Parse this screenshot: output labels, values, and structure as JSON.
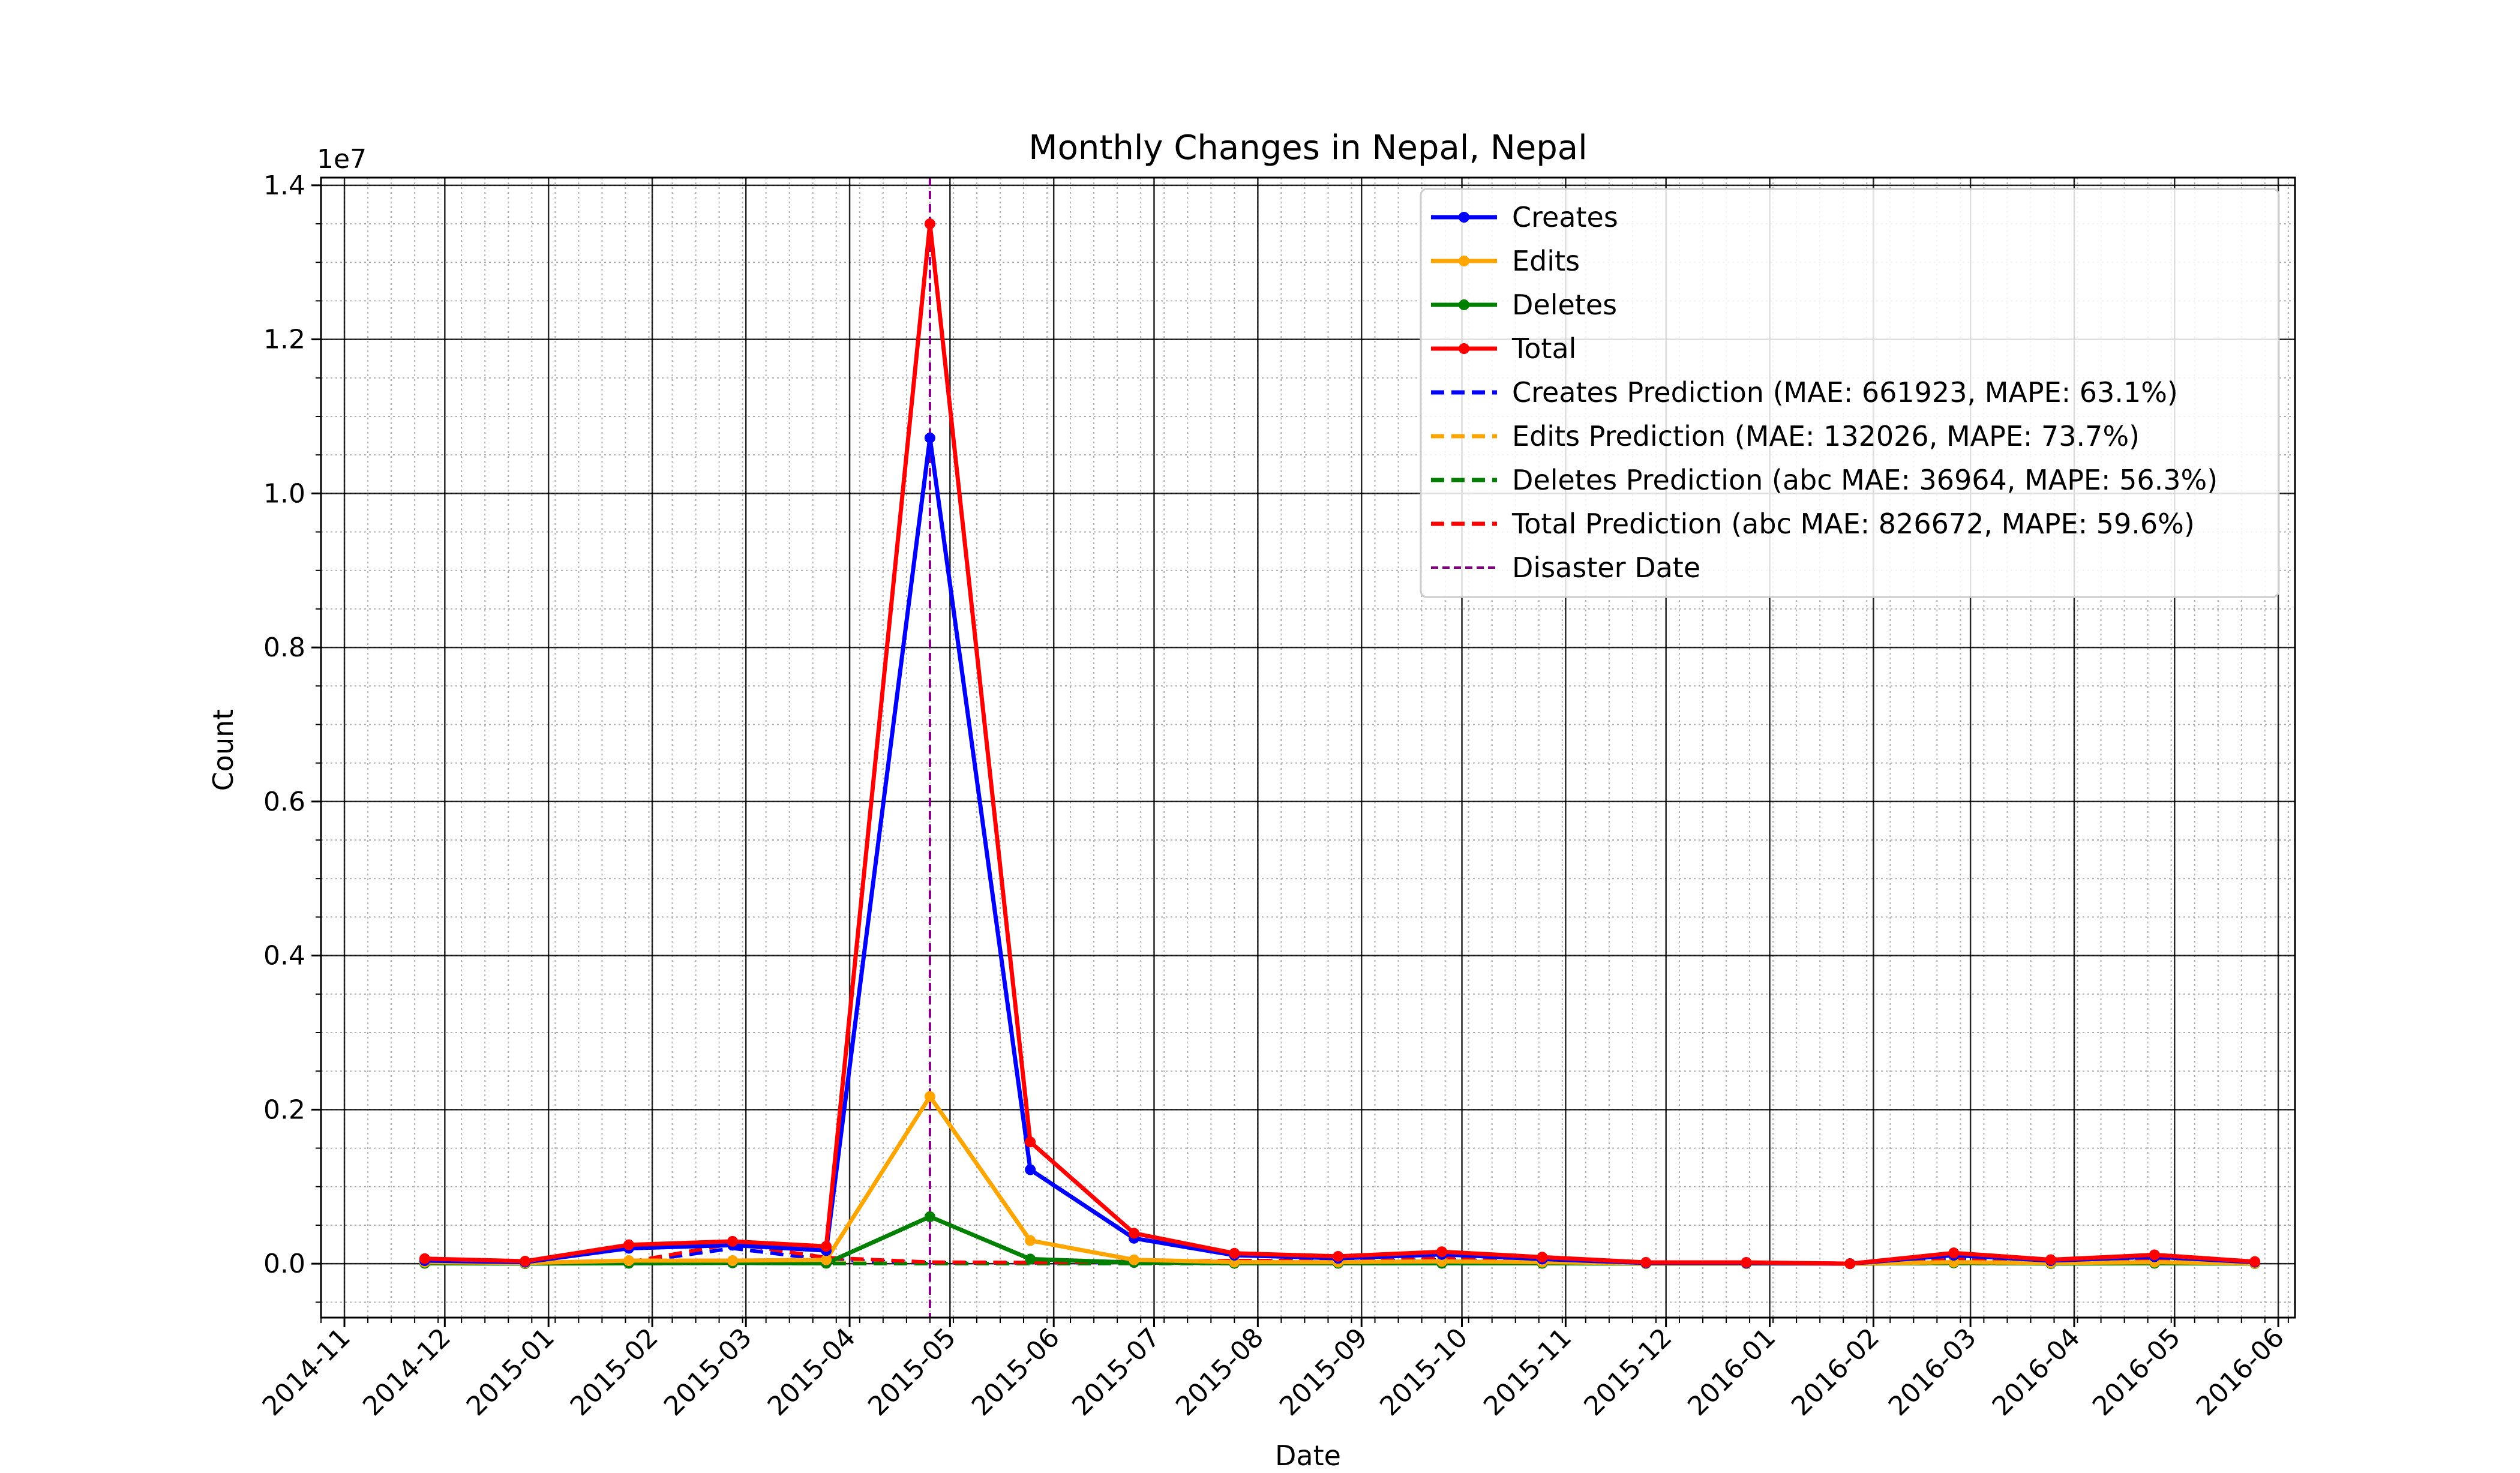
{
  "chart_data": {
    "type": "line",
    "title": "Monthly Changes in Nepal, Nepal",
    "xlabel": "Date",
    "ylabel": "Count",
    "y_scale_label": "1e7",
    "y_scale": 10000000,
    "ylim": [
      -0.07,
      1.41
    ],
    "xlim": [
      "2014-10-25",
      "2016-06-06"
    ],
    "x_ticks": [
      "2014-11",
      "2014-12",
      "2015-01",
      "2015-02",
      "2015-03",
      "2015-04",
      "2015-05",
      "2015-06",
      "2015-07",
      "2015-08",
      "2015-09",
      "2015-10",
      "2015-11",
      "2015-12",
      "2016-01",
      "2016-02",
      "2016-03",
      "2016-04",
      "2016-05",
      "2016-06"
    ],
    "y_ticks": [
      "0.0",
      "0.2",
      "0.4",
      "0.6",
      "0.8",
      "1.0",
      "1.2",
      "1.4"
    ],
    "grid": true,
    "legend_position": "top-right",
    "disaster_date": "2015-04-25",
    "x": [
      "2014-11-25",
      "2014-12-25",
      "2015-01-25",
      "2015-02-25",
      "2015-03-25",
      "2015-04-25",
      "2015-05-25",
      "2015-06-25",
      "2015-07-25",
      "2015-08-25",
      "2015-09-25",
      "2015-10-25",
      "2015-11-25",
      "2015-12-25",
      "2016-01-25",
      "2016-02-25",
      "2016-03-25",
      "2016-04-25",
      "2016-05-25"
    ],
    "series": [
      {
        "name": "Creates",
        "color": "#0000ff",
        "style": "solid",
        "marker": true,
        "values": [
          40000,
          20000,
          200000,
          240000,
          170000,
          10720000,
          1220000,
          330000,
          110000,
          70000,
          120000,
          60000,
          10000,
          10000,
          0,
          110000,
          40000,
          90000,
          20000
        ]
      },
      {
        "name": "Edits",
        "color": "#ffa500",
        "style": "solid",
        "marker": true,
        "values": [
          20000,
          10000,
          40000,
          40000,
          50000,
          2170000,
          300000,
          50000,
          20000,
          20000,
          30000,
          20000,
          5000,
          5000,
          0,
          20000,
          10000,
          20000,
          5000
        ]
      },
      {
        "name": "Deletes",
        "color": "#008000",
        "style": "solid",
        "marker": true,
        "values": [
          5000,
          2000,
          5000,
          10000,
          5000,
          610000,
          60000,
          15000,
          5000,
          5000,
          5000,
          5000,
          2000,
          2000,
          0,
          10000,
          2000,
          5000,
          2000
        ]
      },
      {
        "name": "Total",
        "color": "#ff0000",
        "style": "solid",
        "marker": true,
        "values": [
          65000,
          32000,
          245000,
          290000,
          225000,
          13500000,
          1580000,
          395000,
          135000,
          95000,
          155000,
          85000,
          17000,
          17000,
          0,
          140000,
          52000,
          115000,
          27000
        ]
      },
      {
        "name": "Creates Prediction (MAE: 661923, MAPE: 63.1%)",
        "color": "#0000ff",
        "style": "dashed",
        "marker": false,
        "values": [
          null,
          null,
          10000,
          200000,
          50000,
          10000,
          10000,
          20000,
          30000,
          30000,
          50000,
          30000,
          10000,
          10000,
          0,
          60000,
          30000,
          40000,
          10000
        ]
      },
      {
        "name": "Edits Prediction (MAE: 132026, MAPE: 73.7%)",
        "color": "#ffa500",
        "style": "dashed",
        "marker": false,
        "values": [
          null,
          null,
          2000,
          40000,
          20000,
          2000,
          2000,
          10000,
          10000,
          10000,
          15000,
          10000,
          2000,
          2000,
          0,
          10000,
          5000,
          10000,
          2000
        ]
      },
      {
        "name": "Deletes Prediction (abc MAE: 36964, MAPE: 56.3%)",
        "color": "#008000",
        "style": "dashed",
        "marker": false,
        "values": [
          null,
          null,
          1000,
          5000,
          3000,
          1000,
          1000,
          2000,
          2000,
          2000,
          2000,
          2000,
          1000,
          1000,
          0,
          2000,
          1000,
          2000,
          1000
        ]
      },
      {
        "name": "Total Prediction (abc MAE: 826672, MAPE: 59.6%)",
        "color": "#ff0000",
        "style": "dashed",
        "marker": false,
        "values": [
          null,
          null,
          20000,
          260000,
          80000,
          20000,
          15000,
          30000,
          40000,
          40000,
          70000,
          45000,
          15000,
          15000,
          0,
          75000,
          35000,
          55000,
          15000
        ]
      }
    ],
    "disaster_line": {
      "name": "Disaster Date",
      "color": "#800080",
      "style": "dashed"
    }
  }
}
